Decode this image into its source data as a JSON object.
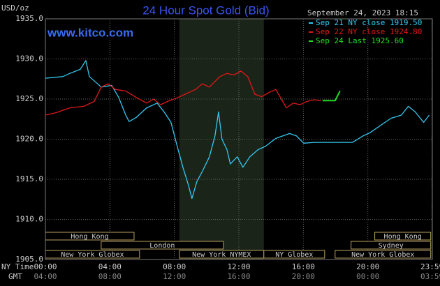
{
  "chart_data": {
    "type": "line",
    "title": "24 Hour Spot Gold (Bid)",
    "site": "www.kitco.com",
    "y_label": "USD/oz",
    "timestamp": "September 24, 2023 18:15",
    "x_label": "NY Time",
    "x2_label": "GMT",
    "xlim": [
      0,
      24
    ],
    "ylim": [
      1905,
      1935
    ],
    "yticks": [
      {
        "value": 1905,
        "label": "1905.0"
      },
      {
        "value": 1910,
        "label": "1910.0"
      },
      {
        "value": 1915,
        "label": "1915.0"
      },
      {
        "value": 1920,
        "label": "1920.0"
      },
      {
        "value": 1925,
        "label": "1925.0"
      },
      {
        "value": 1930,
        "label": "1930.0"
      },
      {
        "value": 1935,
        "label": "1935.0"
      }
    ],
    "xticks": [
      {
        "value": 0,
        "label": "00:00"
      },
      {
        "value": 4,
        "label": "04:00"
      },
      {
        "value": 8,
        "label": "08:00"
      },
      {
        "value": 12,
        "label": "12:00"
      },
      {
        "value": 16,
        "label": "16:00"
      },
      {
        "value": 20,
        "label": "20:00"
      },
      {
        "value": 23.98,
        "label": "23:59"
      }
    ],
    "x2ticks": [
      {
        "value": 0,
        "label": "04:00"
      },
      {
        "value": 4,
        "label": "08:00"
      },
      {
        "value": 8,
        "label": "12:00"
      },
      {
        "value": 12,
        "label": "16:00"
      },
      {
        "value": 16,
        "label": "20:00"
      },
      {
        "value": 20,
        "label": "00:00"
      },
      {
        "value": 23.98,
        "label": "03:59"
      }
    ],
    "grid": true,
    "series": [
      {
        "name": "Sep 21 NY close 1919.50",
        "color": "#33c8f0",
        "x": [
          0,
          1.08,
          1.52,
          2.16,
          2.51,
          2.73,
          3.46,
          4.11,
          4.55,
          4.98,
          5.19,
          5.63,
          6.28,
          6.93,
          7.36,
          7.79,
          8.01,
          8.23,
          8.53,
          8.87,
          9.09,
          9.39,
          9.74,
          10.17,
          10.52,
          10.74,
          10.95,
          11.26,
          11.47,
          11.9,
          12.25,
          12.68,
          13.2,
          13.64,
          14.29,
          14.72,
          15.15,
          15.58,
          16.02,
          16.67,
          17.53,
          18.4,
          19.05,
          19.7,
          20.13,
          20.78,
          21.43,
          22.08,
          22.51,
          22.94,
          23.46,
          23.81
        ],
        "values": [
          1927.6,
          1927.8,
          1928.2,
          1928.7,
          1929.8,
          1927.8,
          1926.5,
          1926.7,
          1925.2,
          1923.0,
          1922.2,
          1922.7,
          1923.9,
          1924.5,
          1923.4,
          1922.1,
          1920.4,
          1918.7,
          1916.5,
          1914.3,
          1912.6,
          1914.7,
          1916.0,
          1917.8,
          1920.4,
          1923.4,
          1920.0,
          1918.7,
          1916.9,
          1917.8,
          1916.5,
          1917.8,
          1918.7,
          1919.1,
          1920.1,
          1920.4,
          1920.7,
          1920.4,
          1919.5,
          1919.6,
          1919.6,
          1919.6,
          1919.6,
          1920.4,
          1920.8,
          1921.7,
          1922.6,
          1923.0,
          1924.1,
          1923.4,
          1922.1,
          1923.0
        ]
      },
      {
        "name": "Sep 22 NY close 1924.80",
        "color": "#e01818",
        "x": [
          0,
          0.65,
          1.52,
          2.38,
          3.03,
          3.46,
          3.9,
          4.33,
          4.98,
          5.63,
          6.28,
          6.71,
          7.14,
          7.58,
          8.23,
          8.66,
          9.31,
          9.74,
          10.17,
          10.82,
          11.26,
          11.69,
          12.12,
          12.55,
          12.99,
          13.42,
          13.85,
          14.29,
          14.72,
          14.94,
          15.37,
          15.8,
          16.23,
          16.67,
          17.1
        ],
        "values": [
          1923.0,
          1923.3,
          1923.9,
          1924.1,
          1924.7,
          1926.5,
          1926.9,
          1926.2,
          1926.0,
          1925.2,
          1924.5,
          1925.0,
          1924.3,
          1924.7,
          1925.2,
          1925.6,
          1926.2,
          1926.9,
          1926.5,
          1927.8,
          1928.2,
          1928.0,
          1928.5,
          1927.8,
          1925.6,
          1925.3,
          1925.8,
          1926.2,
          1924.7,
          1923.9,
          1924.5,
          1924.3,
          1924.7,
          1924.9,
          1924.8
        ]
      },
      {
        "name": "Sep 24 Last 1925.60",
        "color": "#22dd22",
        "x": [
          17.19,
          17.97,
          18.27
        ],
        "values": [
          1924.8,
          1924.8,
          1926.0
        ]
      }
    ],
    "sessions": [
      [
        {
          "name": "Hong Kong",
          "start": 0,
          "end": 5.5
        },
        {
          "name": "Hong Kong",
          "start": 20.43,
          "end": 23.9
        }
      ],
      [
        {
          "name": "London",
          "start": 3.46,
          "end": 11.04
        },
        {
          "name": "Sydney",
          "start": 18.96,
          "end": 23.9
        }
      ],
      [
        {
          "name": "New York Globex",
          "start": 0,
          "end": 5.84
        },
        {
          "name": "New York NYMEX",
          "start": 8.31,
          "end": 13.55
        },
        {
          "name": "NY Globex",
          "start": 13.55,
          "end": 17.32
        },
        {
          "name": "New York Globex",
          "start": 17.97,
          "end": 23.9
        }
      ]
    ]
  }
}
